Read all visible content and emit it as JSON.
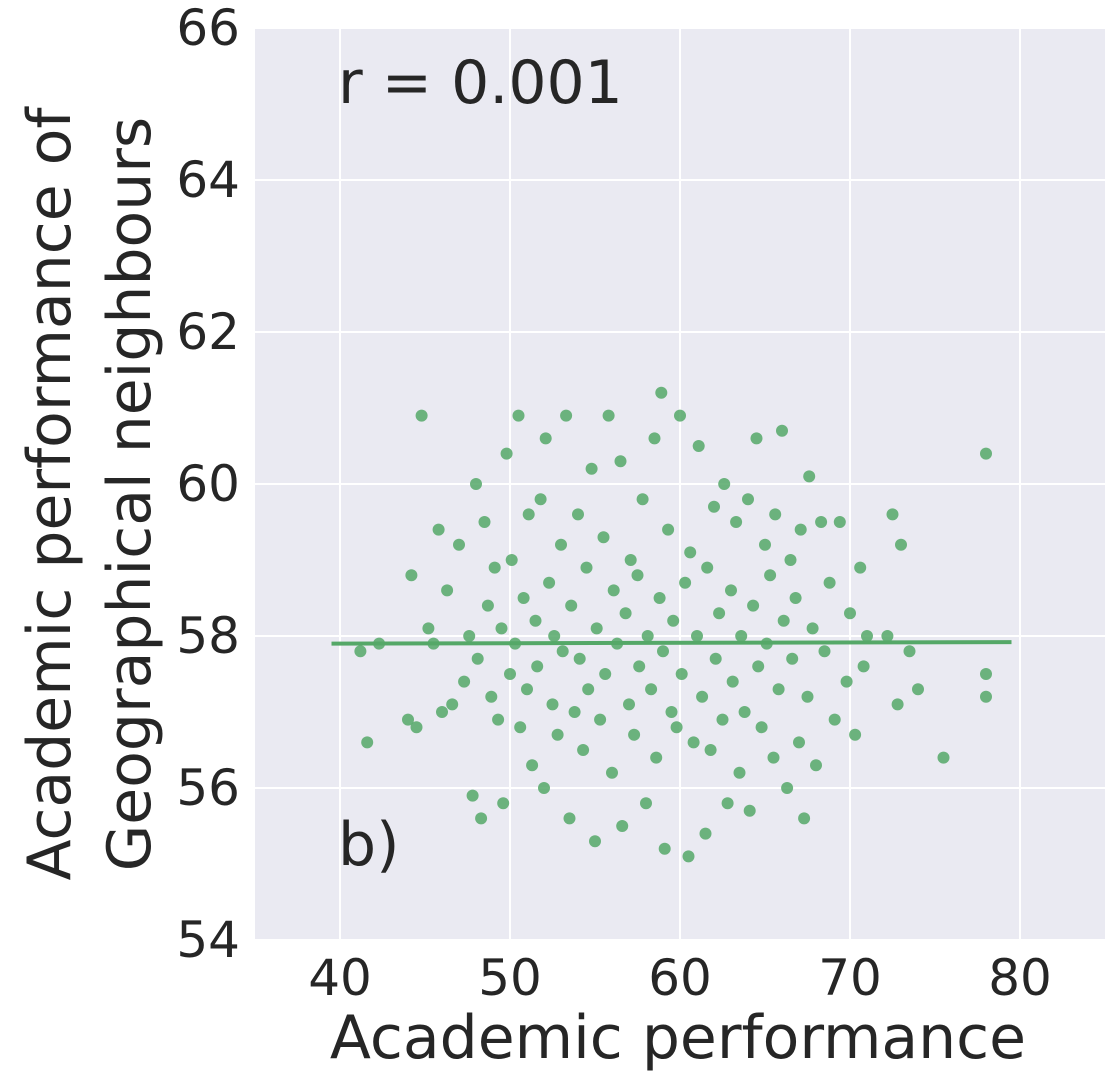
{
  "chart_data": {
    "type": "scatter",
    "title": "",
    "xlabel": "Academic performance",
    "ylabel_lines": [
      "Academic performance of",
      "Geographical neighbours"
    ],
    "xlim": [
      35,
      85
    ],
    "ylim": [
      54,
      66
    ],
    "xticks": [
      40,
      50,
      60,
      70,
      80
    ],
    "yticks": [
      54,
      56,
      58,
      60,
      62,
      64,
      66
    ],
    "grid": true,
    "annotations": {
      "correlation": "r = 0.001",
      "panel": "b)"
    },
    "colors": {
      "background": "#eaeaf2",
      "grid": "#ffffff",
      "points": "#55a868",
      "line": "#55a868",
      "text": "#262626"
    },
    "regression_line": {
      "x": [
        39.5,
        79.5
      ],
      "y": [
        57.9,
        57.92
      ]
    },
    "points": [
      [
        41.2,
        57.8
      ],
      [
        41.6,
        56.6
      ],
      [
        42.3,
        57.9
      ],
      [
        44.0,
        56.9
      ],
      [
        44.2,
        58.8
      ],
      [
        44.5,
        56.8
      ],
      [
        44.8,
        60.9
      ],
      [
        45.2,
        58.1
      ],
      [
        45.5,
        57.9
      ],
      [
        45.8,
        59.4
      ],
      [
        46.0,
        57.0
      ],
      [
        46.3,
        58.6
      ],
      [
        46.6,
        57.1
      ],
      [
        47.0,
        59.2
      ],
      [
        47.3,
        57.4
      ],
      [
        47.6,
        58.0
      ],
      [
        47.8,
        55.9
      ],
      [
        48.0,
        60.0
      ],
      [
        48.1,
        57.7
      ],
      [
        48.3,
        55.6
      ],
      [
        48.5,
        59.5
      ],
      [
        48.7,
        58.4
      ],
      [
        48.9,
        57.2
      ],
      [
        49.1,
        58.9
      ],
      [
        49.3,
        56.9
      ],
      [
        49.5,
        58.1
      ],
      [
        49.6,
        55.8
      ],
      [
        49.8,
        60.4
      ],
      [
        50.0,
        57.5
      ],
      [
        50.1,
        59.0
      ],
      [
        50.3,
        57.9
      ],
      [
        50.5,
        60.9
      ],
      [
        50.6,
        56.8
      ],
      [
        50.8,
        58.5
      ],
      [
        51.0,
        57.3
      ],
      [
        51.1,
        59.6
      ],
      [
        51.3,
        56.3
      ],
      [
        51.5,
        58.2
      ],
      [
        51.6,
        57.6
      ],
      [
        51.8,
        59.8
      ],
      [
        52.0,
        56.0
      ],
      [
        52.1,
        60.6
      ],
      [
        52.3,
        58.7
      ],
      [
        52.5,
        57.1
      ],
      [
        52.6,
        58.0
      ],
      [
        52.8,
        56.7
      ],
      [
        53.0,
        59.2
      ],
      [
        53.1,
        57.8
      ],
      [
        53.3,
        60.9
      ],
      [
        53.5,
        55.6
      ],
      [
        53.6,
        58.4
      ],
      [
        53.8,
        57.0
      ],
      [
        54.0,
        59.6
      ],
      [
        54.1,
        57.7
      ],
      [
        54.3,
        56.5
      ],
      [
        54.5,
        58.9
      ],
      [
        54.6,
        57.3
      ],
      [
        54.8,
        60.2
      ],
      [
        55.0,
        55.3
      ],
      [
        55.1,
        58.1
      ],
      [
        55.3,
        56.9
      ],
      [
        55.5,
        59.3
      ],
      [
        55.6,
        57.5
      ],
      [
        55.8,
        60.9
      ],
      [
        56.0,
        56.2
      ],
      [
        56.1,
        58.6
      ],
      [
        56.3,
        57.9
      ],
      [
        56.5,
        60.3
      ],
      [
        56.6,
        55.5
      ],
      [
        56.8,
        58.3
      ],
      [
        57.0,
        57.1
      ],
      [
        57.1,
        59.0
      ],
      [
        57.3,
        56.7
      ],
      [
        57.5,
        58.8
      ],
      [
        57.6,
        57.6
      ],
      [
        57.8,
        59.8
      ],
      [
        58.0,
        55.8
      ],
      [
        58.1,
        58.0
      ],
      [
        58.3,
        57.3
      ],
      [
        58.5,
        60.6
      ],
      [
        58.6,
        56.4
      ],
      [
        58.8,
        58.5
      ],
      [
        58.9,
        61.2
      ],
      [
        59.0,
        57.8
      ],
      [
        59.1,
        55.2
      ],
      [
        59.3,
        59.4
      ],
      [
        59.5,
        57.0
      ],
      [
        59.6,
        58.2
      ],
      [
        59.8,
        56.8
      ],
      [
        60.0,
        60.9
      ],
      [
        60.1,
        57.5
      ],
      [
        60.3,
        58.7
      ],
      [
        60.5,
        55.1
      ],
      [
        60.6,
        59.1
      ],
      [
        60.8,
        56.6
      ],
      [
        61.0,
        58.0
      ],
      [
        61.1,
        60.5
      ],
      [
        61.3,
        57.2
      ],
      [
        61.5,
        55.4
      ],
      [
        61.6,
        58.9
      ],
      [
        61.8,
        56.5
      ],
      [
        62.0,
        59.7
      ],
      [
        62.1,
        57.7
      ],
      [
        62.3,
        58.3
      ],
      [
        62.5,
        56.9
      ],
      [
        62.6,
        60.0
      ],
      [
        62.8,
        55.8
      ],
      [
        63.0,
        58.6
      ],
      [
        63.1,
        57.4
      ],
      [
        63.3,
        59.5
      ],
      [
        63.5,
        56.2
      ],
      [
        63.6,
        58.0
      ],
      [
        63.8,
        57.0
      ],
      [
        64.0,
        59.8
      ],
      [
        64.1,
        55.7
      ],
      [
        64.3,
        58.4
      ],
      [
        64.5,
        60.6
      ],
      [
        64.6,
        57.6
      ],
      [
        64.8,
        56.8
      ],
      [
        65.0,
        59.2
      ],
      [
        65.1,
        57.9
      ],
      [
        65.3,
        58.8
      ],
      [
        65.5,
        56.4
      ],
      [
        65.6,
        59.6
      ],
      [
        65.8,
        57.3
      ],
      [
        66.0,
        60.7
      ],
      [
        66.1,
        58.2
      ],
      [
        66.3,
        56.0
      ],
      [
        66.5,
        59.0
      ],
      [
        66.6,
        57.7
      ],
      [
        66.8,
        58.5
      ],
      [
        67.0,
        56.6
      ],
      [
        67.1,
        59.4
      ],
      [
        67.3,
        55.6
      ],
      [
        67.5,
        57.2
      ],
      [
        67.6,
        60.1
      ],
      [
        67.8,
        58.1
      ],
      [
        68.0,
        56.3
      ],
      [
        68.3,
        59.5
      ],
      [
        68.5,
        57.8
      ],
      [
        68.8,
        58.7
      ],
      [
        69.1,
        56.9
      ],
      [
        69.4,
        59.5
      ],
      [
        69.8,
        57.4
      ],
      [
        70.0,
        58.3
      ],
      [
        70.3,
        56.7
      ],
      [
        70.6,
        58.9
      ],
      [
        70.8,
        57.6
      ],
      [
        71.0,
        58.0
      ],
      [
        72.2,
        58.0
      ],
      [
        72.5,
        59.6
      ],
      [
        72.8,
        57.1
      ],
      [
        73.0,
        59.2
      ],
      [
        73.5,
        57.8
      ],
      [
        74.0,
        57.3
      ],
      [
        75.5,
        56.4
      ],
      [
        78.0,
        57.5
      ],
      [
        78.0,
        57.2
      ],
      [
        78.0,
        60.4
      ]
    ]
  }
}
